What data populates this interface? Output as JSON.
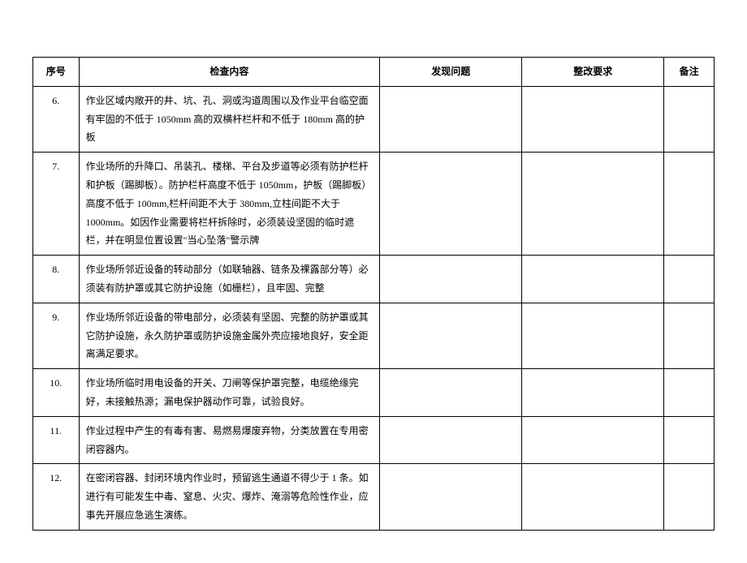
{
  "table": {
    "headers": {
      "seq": "序号",
      "content": "检查内容",
      "problem": "发现问题",
      "requirement": "整改要求",
      "remark": "备注"
    },
    "rows": [
      {
        "seq": "6.",
        "content": "作业区域内敞开的井、坑、孔、洞或沟道周围以及作业平台临空面有牢固的不低于 1050mm 高的双横杆栏杆和不低于 180mm 高的护板",
        "problem": "",
        "requirement": "",
        "remark": ""
      },
      {
        "seq": "7.",
        "content": "作业场所的升降口、吊装孔、楼梯、平台及步道等必须有防护栏杆和护板（踢脚板）。防护栏杆高度不低于 1050mm，护板（踢脚板）高度不低于 100mm,栏杆间距不大于 380mm,立柱间距不大于 1000mm。如因作业需要将栏杆拆除时，必须装设坚固的临时遮栏，并在明显位置设置\"当心坠落\"警示牌",
        "problem": "",
        "requirement": "",
        "remark": ""
      },
      {
        "seq": "8.",
        "content": "作业场所邻近设备的转动部分（如联轴器、链条及裸露部分等）必须装有防护罩或其它防护设施（如栅栏），且牢固、完整",
        "problem": "",
        "requirement": "",
        "remark": ""
      },
      {
        "seq": "9.",
        "content": "作业场所邻近设备的带电部分，必须装有坚固、完整的防护罩或其它防护设施，永久防护罩或防护设施金属外壳应接地良好，安全距离满足要求。",
        "problem": "",
        "requirement": "",
        "remark": ""
      },
      {
        "seq": "10.",
        "content": "作业场所临时用电设备的开关、刀闸等保护罩完整，电缆绝缘完好，未接触热源；漏电保护器动作可靠，试验良好。",
        "problem": "",
        "requirement": "",
        "remark": ""
      },
      {
        "seq": "11.",
        "content": "作业过程中产生的有毒有害、易燃易爆废弃物，分类放置在专用密闭容器内。",
        "problem": "",
        "requirement": "",
        "remark": ""
      },
      {
        "seq": "12.",
        "content": "在密闭容器、封闭环境内作业时，预留逃生通道不得少于 1 条。如进行有可能发生中毒、窒息、火灾、爆炸、淹溺等危险性作业，应事先开展应急逃生演练。",
        "problem": "",
        "requirement": "",
        "remark": ""
      }
    ]
  }
}
